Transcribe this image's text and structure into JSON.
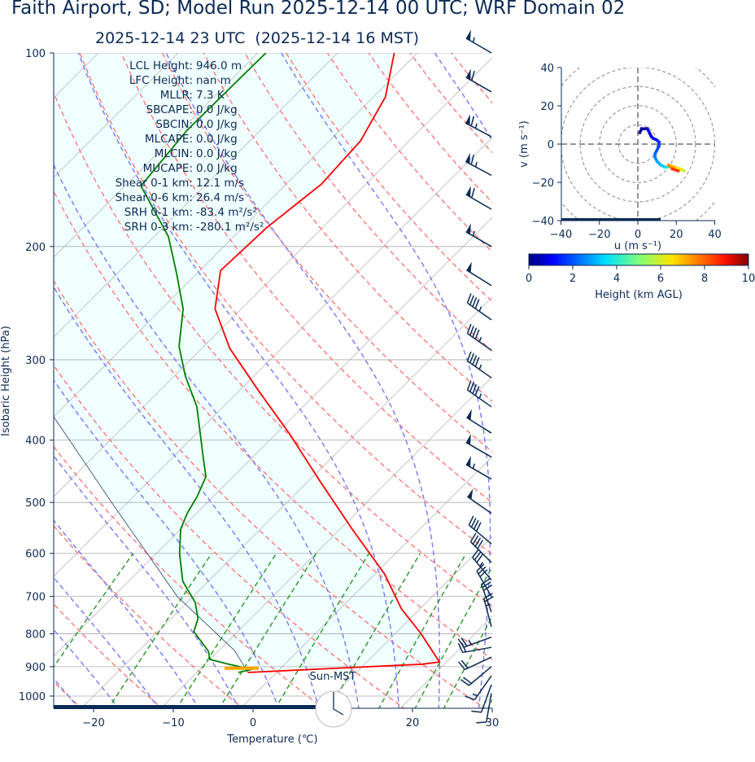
{
  "title": "Faith Airport, SD; Model Run 2025-12-14 00 UTC; WRF Domain 02",
  "subtitle": "2025-12-14 23 UTC  (2025-12-14 16 MST)",
  "colors": {
    "temperature": "#ff0000",
    "dewpoint": "#008000",
    "dry_adiabat": "#ff7777",
    "moist_adiabat": "#7777ff",
    "mixing_ratio": "#229922",
    "isotherm": "#bbbbbb",
    "cape_fill": "#f0ffff",
    "lcl_marker": "#ffa500",
    "text": "#0b2a55"
  },
  "stats": [
    {
      "label": "LCL Height:",
      "value": "946.0 m"
    },
    {
      "label": "LFC Height:",
      "value": "nan m"
    },
    {
      "label": "MLLR:",
      "value": "7.3 K"
    },
    {
      "label": "SBCAPE:",
      "value": "0.0 J/kg"
    },
    {
      "label": "SBCIN:",
      "value": "0.0 J/kg"
    },
    {
      "label": "MLCAPE:",
      "value": "0.0 J/kg"
    },
    {
      "label": "MLCIN:",
      "value": "0.0 J/kg"
    },
    {
      "label": "MUCAPE:",
      "value": "0.0 J/kg"
    },
    {
      "label": "Shear 0-1 km:",
      "value": "12.1 m/s"
    },
    {
      "label": "Shear 0-6 km:",
      "value": "26.4 m/s"
    },
    {
      "label": "SRH 0-1 km:",
      "value": "-83.4 m²/s²"
    },
    {
      "label": "SRH 0-3 km:",
      "value": "-280.1 m²/s²"
    }
  ],
  "sun_label": "Sun-MST",
  "chart_data": [
    {
      "type": "line",
      "kind": "skew-T log-P",
      "xlabel": "Temperature (℃)",
      "ylabel": "Isobaric Height (hPa)",
      "xlim": [
        -25,
        30
      ],
      "ylim": [
        1045,
        100
      ],
      "y_scale": "log",
      "x_ticks": [
        "−20",
        "−10",
        "0",
        "10",
        "20",
        "30"
      ],
      "x_tick_values": [
        -20,
        -10,
        0,
        10,
        20,
        30
      ],
      "y_ticks": [
        "100",
        "200",
        "300",
        "400",
        "500",
        "600",
        "700",
        "800",
        "900",
        "1000"
      ],
      "y_tick_values": [
        100,
        200,
        300,
        400,
        500,
        600,
        700,
        800,
        900,
        1000
      ],
      "grid": true,
      "series": [
        {
          "id": "temperature",
          "p": [
            919,
            892,
            885,
            799,
            732,
            646,
            550,
            462,
            391,
            335,
            288,
            250,
            218,
            187,
            160,
            137,
            117,
            100
          ],
          "t": [
            -3.6,
            17.3,
            19.1,
            13.2,
            7.7,
            1.2,
            -8.5,
            -18.7,
            -28.3,
            -37.6,
            -46.5,
            -53.3,
            -57.4,
            -57.0,
            -55.6,
            -56.1,
            -58.5,
            -62.9
          ]
        },
        {
          "id": "dewpoint",
          "p": [
            919,
            909,
            892,
            877,
            852,
            823,
            794,
            758,
            715,
            663,
            600,
            550,
            519,
            490,
            456,
            423,
            355,
            318,
            286,
            250,
            220,
            193,
            161,
            132,
            100
          ],
          "t": [
            -4.8,
            -3.5,
            -7.1,
            -10.0,
            -11.2,
            -13.3,
            -15.5,
            -16.6,
            -19.0,
            -23.2,
            -27.1,
            -30.0,
            -31.2,
            -32.0,
            -33.4,
            -36.4,
            -43.3,
            -48.6,
            -53.1,
            -57.3,
            -62.6,
            -68.2,
            -78.0,
            -79.2,
            -79.0
          ]
        },
        {
          "id": "parcel",
          "p": [
            919,
            850,
            700,
            500,
            368
          ],
          "t": [
            -3.6,
            -8,
            -22,
            -42,
            -60
          ]
        }
      ],
      "lcl_pressure": 905,
      "wind_barbs": [
        {
          "p": 100,
          "dir": 300,
          "kt": 55
        },
        {
          "p": 115,
          "dir": 300,
          "kt": 60
        },
        {
          "p": 135,
          "dir": 298,
          "kt": 65
        },
        {
          "p": 155,
          "dir": 298,
          "kt": 65
        },
        {
          "p": 175,
          "dir": 300,
          "kt": 60
        },
        {
          "p": 200,
          "dir": 300,
          "kt": 55
        },
        {
          "p": 230,
          "dir": 302,
          "kt": 50
        },
        {
          "p": 260,
          "dir": 305,
          "kt": 45
        },
        {
          "p": 290,
          "dir": 305,
          "kt": 45
        },
        {
          "p": 320,
          "dir": 305,
          "kt": 45
        },
        {
          "p": 355,
          "dir": 305,
          "kt": 45
        },
        {
          "p": 390,
          "dir": 302,
          "kt": 50
        },
        {
          "p": 425,
          "dir": 300,
          "kt": 50
        },
        {
          "p": 460,
          "dir": 300,
          "kt": 55
        },
        {
          "p": 520,
          "dir": 305,
          "kt": 50
        },
        {
          "p": 580,
          "dir": 310,
          "kt": 40
        },
        {
          "p": 620,
          "dir": 315,
          "kt": 40
        },
        {
          "p": 660,
          "dir": 320,
          "kt": 35
        },
        {
          "p": 700,
          "dir": 330,
          "kt": 30
        },
        {
          "p": 740,
          "dir": 340,
          "kt": 30
        },
        {
          "p": 780,
          "dir": 345,
          "kt": 25
        },
        {
          "p": 810,
          "dir": 250,
          "kt": 25
        },
        {
          "p": 840,
          "dir": 260,
          "kt": 20
        },
        {
          "p": 870,
          "dir": 245,
          "kt": 20
        },
        {
          "p": 900,
          "dir": 230,
          "kt": 20
        },
        {
          "p": 930,
          "dir": 215,
          "kt": 15
        },
        {
          "p": 960,
          "dir": 200,
          "kt": 12
        },
        {
          "p": 990,
          "dir": 190,
          "kt": 12
        }
      ]
    },
    {
      "type": "line",
      "kind": "hodograph",
      "xlabel": "u (m s⁻¹)",
      "ylabel": "v (m s⁻¹)",
      "xlim": [
        -40,
        40
      ],
      "ylim": [
        -40,
        40
      ],
      "x_ticks": [
        "−40",
        "−20",
        "0",
        "20",
        "40"
      ],
      "y_ticks": [
        "40",
        "20",
        "0",
        "−20",
        "−40"
      ],
      "tick_values": [
        -40,
        -20,
        0,
        20,
        40
      ],
      "rings": [
        10,
        20,
        30,
        40,
        50
      ],
      "u": [
        1,
        2,
        3,
        5,
        6,
        7,
        8,
        10,
        11,
        11,
        10,
        9,
        9,
        10,
        12,
        14,
        16,
        18,
        20,
        22,
        24,
        22,
        19,
        16,
        18,
        21
      ],
      "v": [
        6,
        8,
        8,
        8,
        6,
        4,
        3,
        2,
        1,
        -1,
        -3,
        -5,
        -7,
        -9,
        -11,
        -12,
        -12,
        -12,
        -13,
        -13,
        -14,
        -13,
        -12,
        -11,
        -13,
        -14
      ],
      "height_km": [
        0,
        0.2,
        0.4,
        0.6,
        0.8,
        1.0,
        1.2,
        1.4,
        1.6,
        1.8,
        2.0,
        2.3,
        2.6,
        2.9,
        3.2,
        3.5,
        4.0,
        4.5,
        5.0,
        5.5,
        6.0,
        6.5,
        7.0,
        7.5,
        8.5,
        9.5
      ],
      "colorbar": {
        "label": "Height (km AGL)",
        "ticks": [
          "0",
          "2",
          "4",
          "6",
          "8",
          "10"
        ],
        "range": [
          0,
          10
        ],
        "colormap": "jet"
      }
    }
  ]
}
